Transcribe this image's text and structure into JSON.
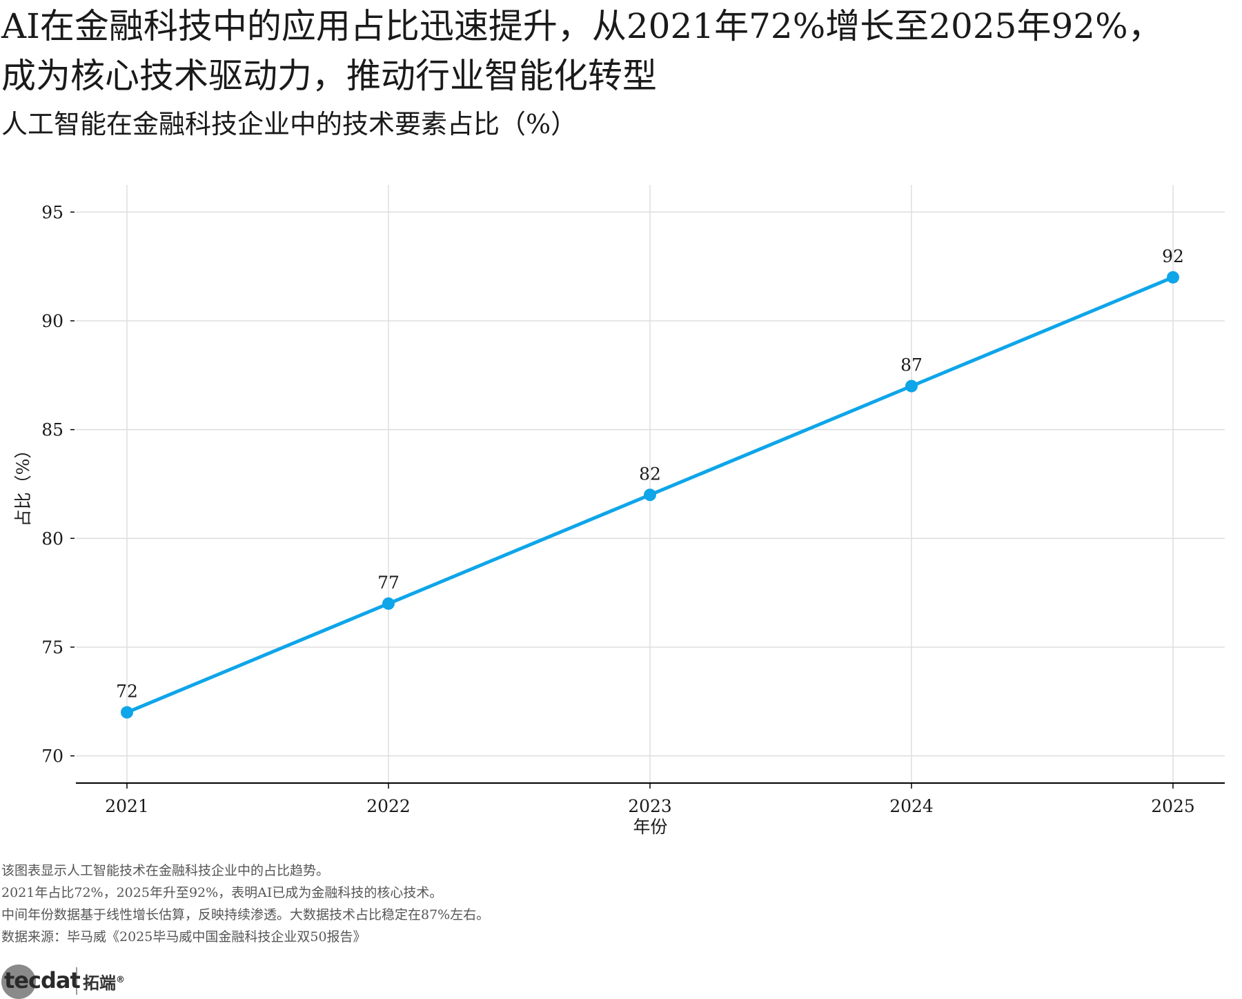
{
  "headline": {
    "line1": "AI在金融科技中的应用占比迅速提升，从2021年72%增长至2025年92%，",
    "line2": "成为核心技术驱动力，推动行业智能化转型"
  },
  "subtitle": "人工智能在金融科技企业中的技术要素占比（%）",
  "notes": [
    "该图表显示人工智能技术在金融科技企业中的占比趋势。",
    "2021年占比72%，2025年升至92%，表明AI已成为金融科技的核心技术。",
    "中间年份数据基于线性增长估算，反映持续渗透。大数据技术占比稳定在87%左右。",
    "数据来源：毕马威《2025毕马威中国金融科技企业双50报告》"
  ],
  "brand": {
    "logo_text": "tecdat",
    "name": "拓端",
    "mark": "®"
  },
  "colors": {
    "line": "#0ea5e9",
    "grid": "#dddddd",
    "axis": "#000000"
  },
  "chart_data": {
    "type": "line",
    "categories": [
      "2021",
      "2022",
      "2023",
      "2024",
      "2025"
    ],
    "series": [
      {
        "values": [
          72,
          77,
          82,
          87,
          92
        ],
        "data_labels": [
          "72",
          "77",
          "82",
          "87",
          "92"
        ]
      }
    ],
    "xlabel": "年份",
    "ylabel": "占比（%）",
    "ylim": [
      68.75,
      96.25
    ],
    "yticks": [
      70,
      75,
      80,
      85,
      90,
      95
    ],
    "grid": true,
    "markers": true
  }
}
